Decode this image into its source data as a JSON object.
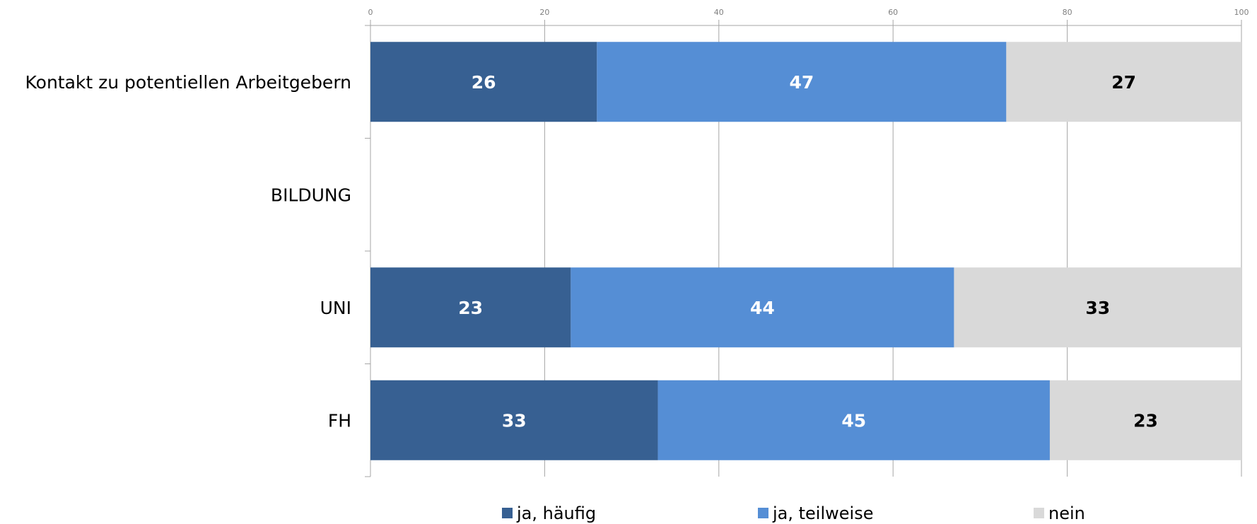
{
  "chart_data": {
    "type": "bar",
    "orientation": "horizontal",
    "stacked": true,
    "categories": [
      "Kontakt zu potentiellen Arbeitgebern",
      "BILDUNG",
      "UNI",
      "FH"
    ],
    "series": [
      {
        "name": "ja, häufig",
        "values": [
          26,
          null,
          23,
          33
        ],
        "color": "#376092",
        "label_color": "#ffffff"
      },
      {
        "name": "ja, teilweise",
        "values": [
          47,
          null,
          44,
          45
        ],
        "color": "#558ED5",
        "label_color": "#ffffff"
      },
      {
        "name": "nein",
        "values": [
          27,
          null,
          33,
          23
        ],
        "color": "#D9D9D9",
        "label_color": "#000000"
      }
    ],
    "xlim": [
      0,
      100
    ],
    "xticks": [
      0,
      20,
      40,
      60,
      80,
      100
    ],
    "tick_labels": [
      "0",
      "20",
      "40",
      "60",
      "80",
      "100"
    ],
    "axis_position": "top",
    "grid": true,
    "legend_position": "bottom"
  }
}
